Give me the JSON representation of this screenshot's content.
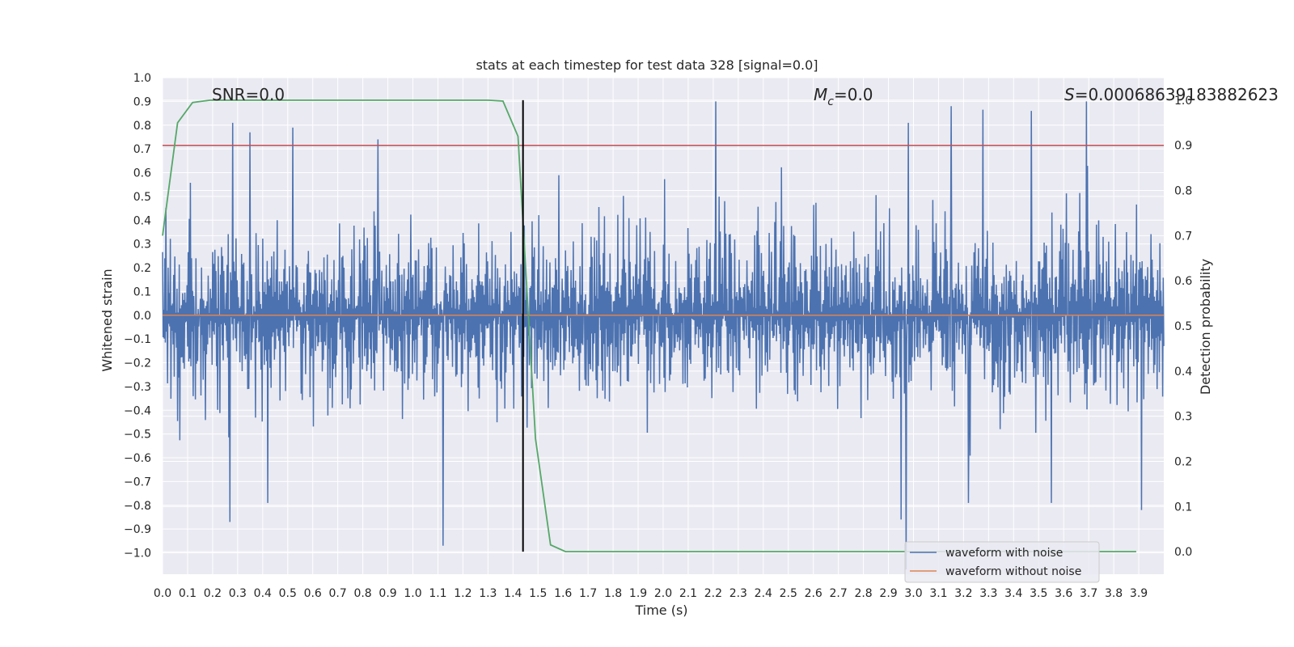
{
  "chart_data": {
    "type": "line",
    "title": "stats at each timestep for test data 328 [signal=0.0]",
    "xlabel": "Time (s)",
    "ylabel": "Whitened strain",
    "y2label": "Detection probability",
    "xlim": [
      0.0,
      4.0
    ],
    "ylim": [
      -1.09,
      1.0
    ],
    "y2lim": [
      -0.05,
      1.05
    ],
    "x_ticks": [
      "0.0",
      "0.1",
      "0.2",
      "0.3",
      "0.4",
      "0.5",
      "0.6",
      "0.7",
      "0.8",
      "0.9",
      "1.0",
      "1.1",
      "1.2",
      "1.3",
      "1.4",
      "1.5",
      "1.6",
      "1.7",
      "1.8",
      "1.9",
      "2.0",
      "2.1",
      "2.2",
      "2.3",
      "2.4",
      "2.5",
      "2.6",
      "2.7",
      "2.8",
      "2.9",
      "3.0",
      "3.1",
      "3.2",
      "3.3",
      "3.4",
      "3.5",
      "3.6",
      "3.7",
      "3.8",
      "3.9"
    ],
    "y_ticks": [
      "1.0",
      "0.9",
      "0.8",
      "0.7",
      "0.6",
      "0.5",
      "0.4",
      "0.3",
      "0.2",
      "0.1",
      "0.0",
      "−0.1",
      "−0.2",
      "−0.3",
      "−0.4",
      "−0.5",
      "−0.6",
      "−0.7",
      "−0.8",
      "−0.9",
      "−1.0"
    ],
    "y2_ticks": [
      "1.0",
      "0.9",
      "0.8",
      "0.7",
      "0.6",
      "0.5",
      "0.4",
      "0.3",
      "0.2",
      "0.1",
      "0.0"
    ],
    "grid": true,
    "legend_position": "bottom-right",
    "annotations": {
      "snr": "SNR=0.0",
      "mc_symbol": "M",
      "mc_sub": "c",
      "mc_value": "=0.0",
      "s_symbol": "S",
      "s_value": "=0.00068639183882623"
    },
    "series": [
      {
        "name": "waveform with noise",
        "color": "#4c72b0",
        "axis": "left",
        "description_note_free": true,
        "noise_sigma": 0.19,
        "sample_count": 1800,
        "spikes": [
          {
            "x": 0.28,
            "y": 0.81
          },
          {
            "x": 0.35,
            "y": 0.77
          },
          {
            "x": 0.52,
            "y": 0.79
          },
          {
            "x": 0.86,
            "y": 0.74
          },
          {
            "x": 2.21,
            "y": 0.9
          },
          {
            "x": 3.15,
            "y": 0.88
          },
          {
            "x": 3.69,
            "y": 0.9
          },
          {
            "x": 3.47,
            "y": 0.86
          },
          {
            "x": 2.98,
            "y": 0.81
          },
          {
            "x": 0.27,
            "y": -0.87
          },
          {
            "x": 0.42,
            "y": -0.79
          },
          {
            "x": 1.12,
            "y": -0.97
          },
          {
            "x": 2.97,
            "y": -1.07
          },
          {
            "x": 2.95,
            "y": -0.86
          },
          {
            "x": 3.91,
            "y": -0.82
          },
          {
            "x": 3.55,
            "y": -0.79
          },
          {
            "x": 3.22,
            "y": -0.79
          }
        ]
      },
      {
        "name": "waveform without noise",
        "color": "#dd8452",
        "axis": "left",
        "x": [
          0.0,
          4.0
        ],
        "y": [
          0.0,
          0.0
        ]
      },
      {
        "name": "",
        "color": "#55a868",
        "axis": "right",
        "x": [
          0.0,
          0.06,
          0.12,
          0.19,
          0.25,
          0.31,
          0.37,
          0.43,
          0.5,
          0.56,
          0.62,
          0.68,
          0.74,
          0.8,
          0.87,
          0.93,
          0.99,
          1.05,
          1.11,
          1.17,
          1.24,
          1.3,
          1.36,
          1.42,
          1.49,
          1.55,
          1.61,
          1.67,
          1.73,
          1.79,
          1.86,
          1.92,
          1.98,
          2.04,
          2.1,
          2.16,
          2.23,
          2.29,
          2.35,
          2.41,
          2.47,
          2.54,
          2.6,
          2.66,
          2.72,
          2.78,
          2.84,
          2.91,
          2.97,
          3.03,
          3.09,
          3.15,
          3.21,
          3.28,
          3.34,
          3.4,
          3.46,
          3.52,
          3.58,
          3.65,
          3.71,
          3.77,
          3.83,
          3.89
        ],
        "y": [
          0.7,
          0.95,
          0.995,
          1.0,
          1.0,
          1.0,
          1.0,
          1.0,
          1.0,
          1.0,
          1.0,
          1.0,
          1.0,
          1.0,
          1.0,
          1.0,
          1.0,
          1.0,
          1.0,
          1.0,
          1.0,
          1.0,
          0.998,
          0.92,
          0.25,
          0.015,
          0.0,
          0.0,
          0.0,
          0.0,
          0.0,
          0.0,
          0.0,
          0.0,
          0.0,
          0.0,
          0.0,
          0.0,
          0.0,
          0.0,
          0.0,
          0.0,
          0.0,
          0.0,
          0.0,
          0.0,
          0.0,
          0.0,
          0.0,
          0.0,
          0.0,
          0.0,
          0.0,
          0.0,
          0.0,
          0.0,
          0.0,
          0.0,
          0.0,
          0.0,
          0.0,
          0.0,
          0.0,
          0.0
        ]
      }
    ],
    "threshold": {
      "value": 0.9,
      "axis": "right",
      "color": "#c44e52"
    },
    "marker": {
      "x": 1.44,
      "color": "#000000"
    }
  }
}
